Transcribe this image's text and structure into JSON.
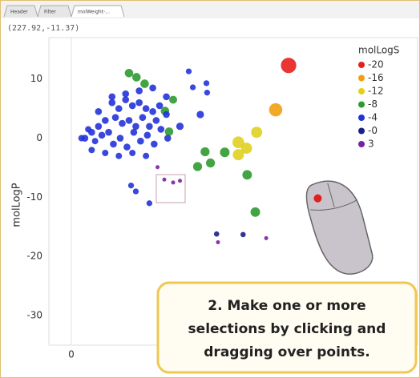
{
  "tabs": [
    "Header",
    "Filter",
    "molWeight-..."
  ],
  "readout": "(227.92,-11.37)",
  "chart_data": {
    "type": "scatter",
    "y_label": "molLogP",
    "xlim": [
      -33,
      510
    ],
    "xticks": [
      0
    ],
    "ylim": [
      -35,
      17
    ],
    "yticks": [
      -30,
      -20,
      -10,
      0,
      10
    ],
    "grid": true,
    "legend": {
      "title": "molLogS",
      "position": "right",
      "values": [
        -20,
        -16,
        -12,
        -8,
        -4,
        {
          "value": 0,
          "label": "-0"
        },
        3
      ],
      "colors": [
        "#e8201c",
        "#f0a010",
        "#e0d020",
        "#2e9a2e",
        "#2433d8",
        "#18208a",
        "#7a1fa0"
      ]
    },
    "series": [
      {
        "name": "compounds",
        "x": [
          320,
          301,
          273,
          246,
          246,
          258,
          259,
          226,
          205,
          197,
          186,
          271,
          173,
          179,
          199,
          200,
          253,
          214,
          287,
          216,
          127,
          85,
          96,
          108,
          138,
          144,
          150,
          60,
          70,
          80,
          90,
          100,
          110,
          120,
          130,
          140,
          50,
          40,
          30,
          20,
          65,
          75,
          85,
          95,
          105,
          115,
          125,
          55,
          45,
          35,
          25,
          15,
          72,
          92,
          112,
          132,
          62,
          82,
          102,
          122,
          142,
          30,
          50,
          70,
          90,
          110,
          40,
          60,
          80,
          100,
          120,
          140,
          160,
          190,
          137,
          150,
          160,
          95,
          88,
          115
        ],
        "values": [
          12.3,
          4.8,
          1,
          -0.7,
          -2.8,
          -1.7,
          -6.2,
          -2.4,
          -4.2,
          -2.3,
          -4.8,
          -12.5,
          11.3,
          8.6,
          9.3,
          7.7,
          -16.3,
          -16.2,
          -16.9,
          -17.6,
          -4.9,
          11,
          10.3,
          9.2,
          4.6,
          1.1,
          6.5,
          6,
          5,
          6.5,
          5.5,
          6,
          5,
          4.5,
          5.5,
          4,
          3,
          2,
          1,
          0,
          3.5,
          2.5,
          3,
          2,
          3.5,
          2,
          3,
          1,
          0.5,
          -0.5,
          1.5,
          0,
          0,
          1,
          0.5,
          1.5,
          -1,
          -1.5,
          -0.5,
          -1,
          0,
          -2,
          -2.5,
          -3,
          -2.5,
          -3,
          4.5,
          7,
          7.5,
          8,
          8.5,
          7,
          2,
          4,
          -7,
          -7.5,
          -7.2,
          -9,
          -8,
          -11
        ],
        "sizes": [
          -20,
          -16,
          -12,
          -13,
          -12,
          -12,
          -9,
          -9,
          -8,
          -8,
          -8,
          -9,
          -2,
          -2,
          -2,
          -2,
          -1,
          -1,
          2,
          2,
          3,
          -7,
          -7,
          -7,
          -7,
          -7,
          -6,
          -4,
          -4,
          -4,
          -4,
          -4,
          -4,
          -4,
          -4,
          -4,
          -4,
          -4,
          -4,
          -4,
          -4,
          -4,
          -4,
          -4,
          -4,
          -4,
          -4,
          -4,
          -4,
          -3,
          -3,
          -3,
          -4,
          -4,
          -4,
          -4,
          -4,
          -4,
          -4,
          -4,
          -4,
          -3,
          -3,
          -3,
          -3,
          -3,
          -4,
          -4,
          -4,
          -4,
          -4,
          -4,
          -5,
          -5,
          3,
          3,
          3,
          -2,
          -2,
          -2
        ]
      }
    ]
  },
  "callout": {
    "lines": [
      "2. Make one or more",
      "selections by clicking and",
      "dragging over points."
    ]
  }
}
